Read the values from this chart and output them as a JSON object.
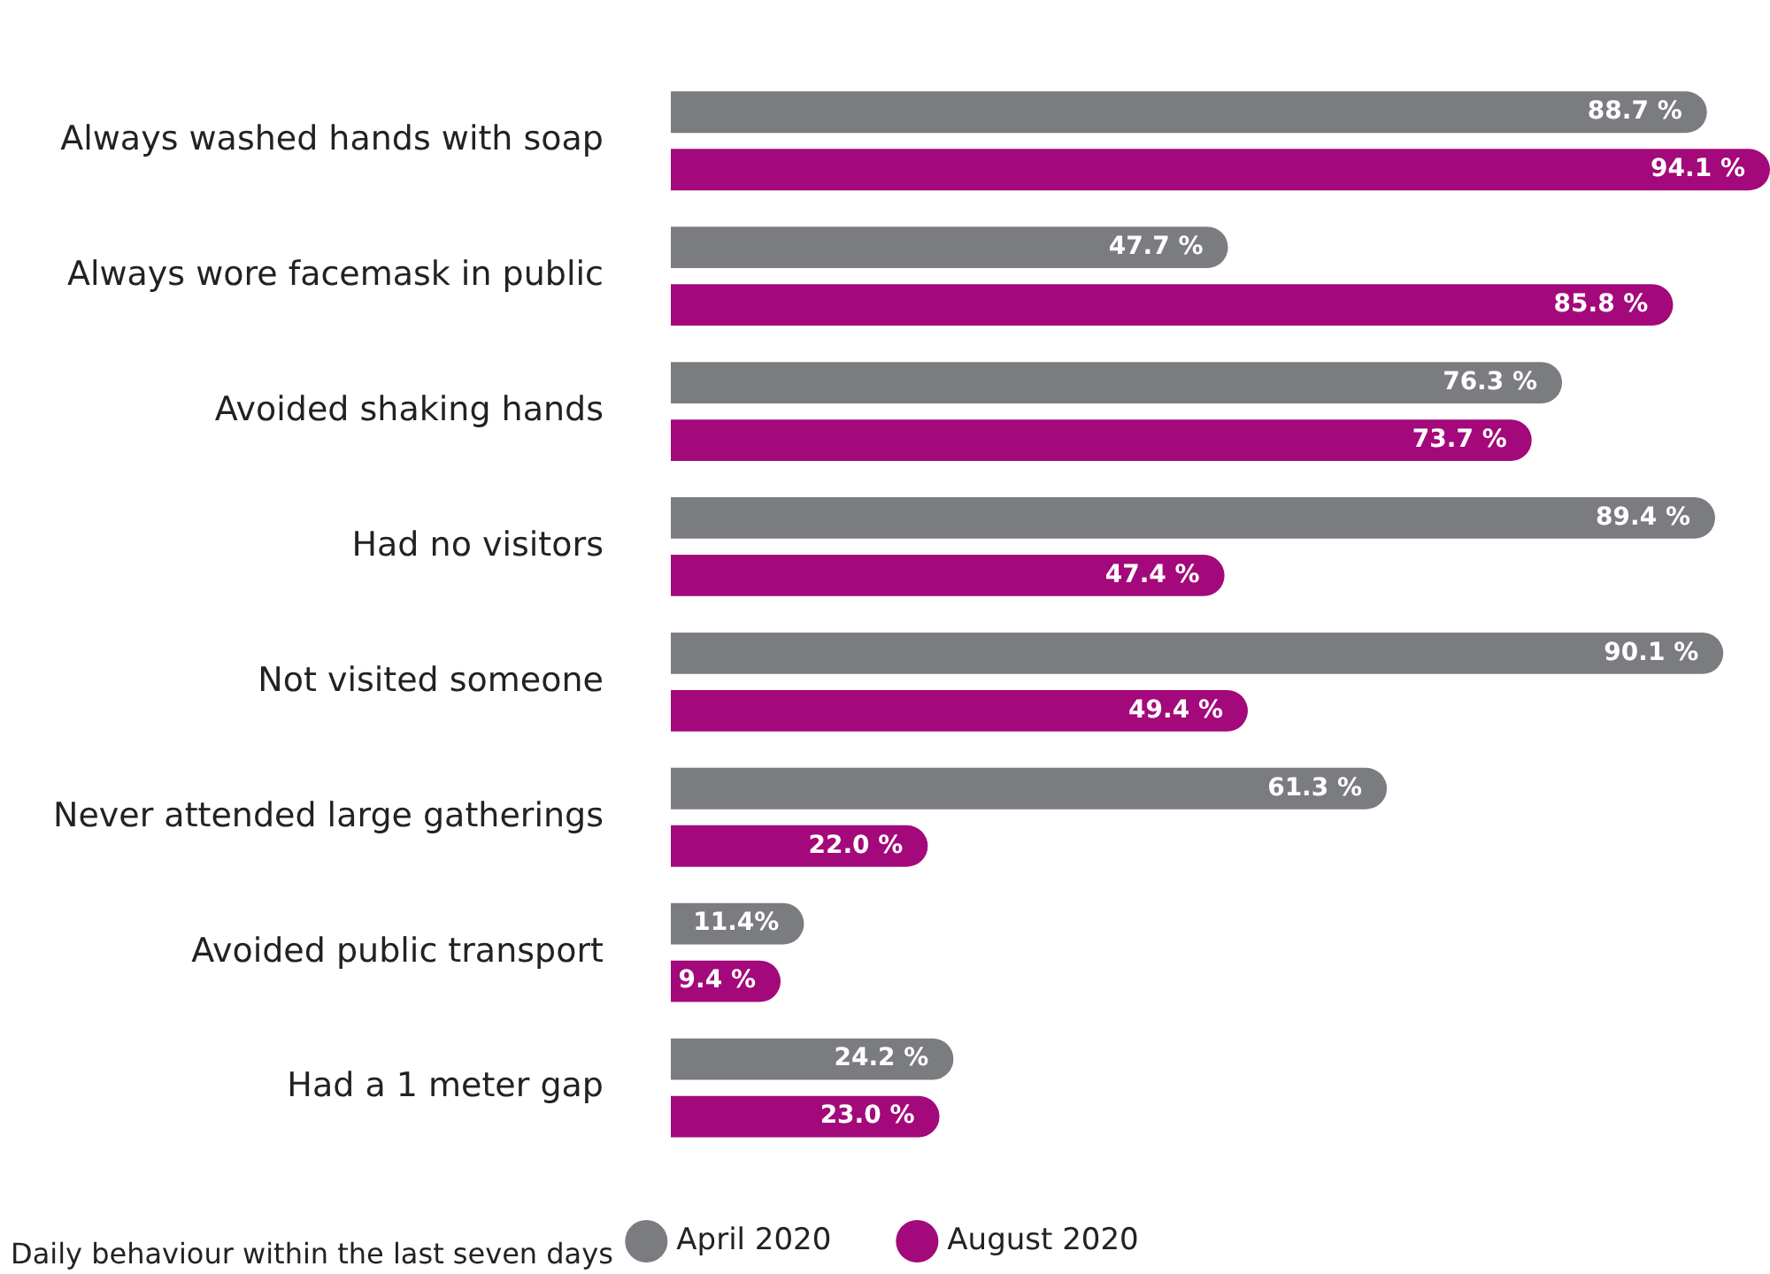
{
  "chart_data": {
    "type": "bar",
    "orientation": "horizontal",
    "categories": [
      "Always washed hands with soap",
      "Always wore facemask in public",
      "Avoided shaking hands",
      "Had no visitors",
      "Not visited someone",
      "Never attended large gatherings",
      "Avoided public transport",
      "Had a 1 meter gap"
    ],
    "series": [
      {
        "name": "April 2020",
        "color": "#7b7c80",
        "values": [
          88.7,
          47.7,
          76.3,
          89.4,
          90.1,
          61.3,
          11.4,
          24.2
        ],
        "value_labels": [
          "88.7 %",
          "47.7 %",
          "76.3 %",
          "89.4 %",
          "90.1 %",
          "61.3 %",
          "11.4%",
          "24.2 %"
        ]
      },
      {
        "name": "August 2020",
        "color": "#a3097a",
        "values": [
          94.1,
          85.8,
          73.7,
          47.4,
          49.4,
          22.0,
          9.4,
          23.0
        ],
        "value_labels": [
          "94.1 %",
          "85.8 %",
          "73.7 %",
          "47.4 %",
          "49.4 %",
          "22.0 %",
          "9.4 %",
          "23.0 %"
        ]
      }
    ],
    "legend": "bottom",
    "annotations": [
      "Daily behaviour within the last seven days"
    ]
  }
}
